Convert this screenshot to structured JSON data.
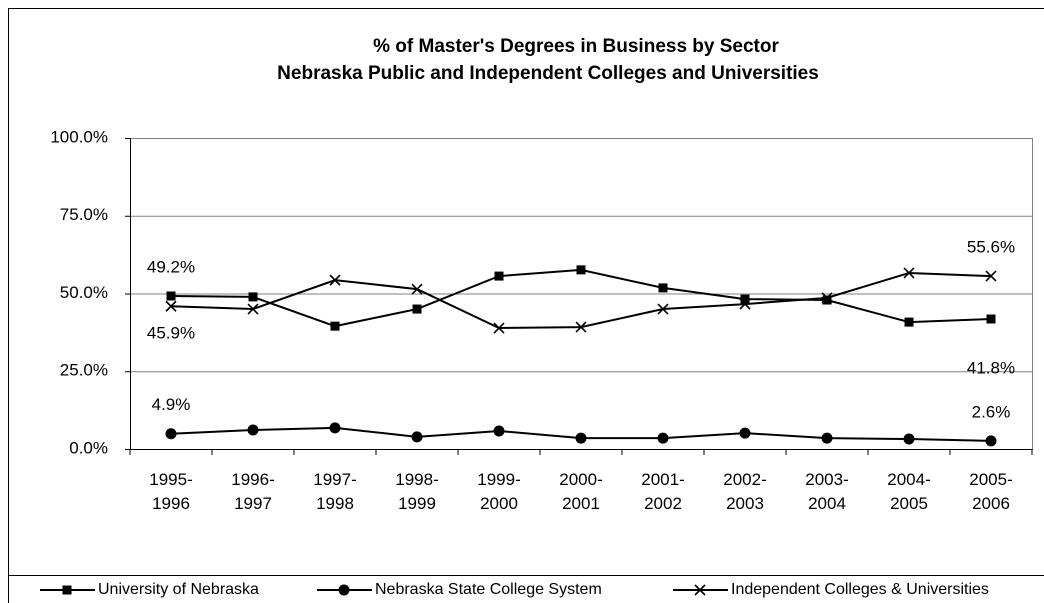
{
  "chart_data": {
    "type": "line",
    "title": "% of Master's Degrees in Business by Sector",
    "subtitle": "Nebraska Public and Independent Colleges and Universities",
    "categories": [
      "1995-\n1996",
      "1996-\n1997",
      "1997-\n1998",
      "1998-\n1999",
      "1999-\n2000",
      "2000-\n2001",
      "2001-\n2002",
      "2002-\n2003",
      "2003-\n2004",
      "2004-\n2005",
      "2005-\n2006"
    ],
    "series": [
      {
        "name": "University of Nebraska",
        "color": "#000000",
        "marker": "square",
        "values": [
          49.2,
          48.9,
          39.5,
          45.0,
          55.6,
          57.6,
          51.8,
          48.2,
          47.9,
          40.8,
          41.8
        ],
        "value_labels": [
          "49.2%",
          null,
          null,
          null,
          null,
          null,
          null,
          null,
          null,
          null,
          "41.8%"
        ]
      },
      {
        "name": "Nebraska State College System",
        "color": "#000000",
        "marker": "circle",
        "values": [
          4.9,
          6.1,
          6.8,
          3.9,
          5.8,
          3.5,
          3.5,
          5.1,
          3.5,
          3.2,
          2.6
        ],
        "value_labels": [
          "4.9%",
          null,
          null,
          null,
          null,
          null,
          null,
          null,
          null,
          null,
          "2.6%"
        ]
      },
      {
        "name": "Independent Colleges & Universities",
        "color": "#000000",
        "marker": "x",
        "values": [
          45.9,
          45.0,
          54.3,
          51.4,
          38.9,
          39.2,
          45.0,
          46.6,
          48.6,
          56.6,
          55.6
        ],
        "value_labels": [
          "45.9%",
          null,
          null,
          null,
          null,
          null,
          null,
          null,
          null,
          null,
          "55.6%"
        ]
      }
    ],
    "ylim": [
      0,
      100
    ],
    "yticks": [
      {
        "value": 0,
        "label": "0.0%"
      },
      {
        "value": 25,
        "label": "25.0%"
      },
      {
        "value": 50,
        "label": "50.0%"
      },
      {
        "value": 75,
        "label": "75.0%"
      },
      {
        "value": 100,
        "label": "100.0%"
      }
    ],
    "grid": true,
    "legend": "bottom"
  }
}
